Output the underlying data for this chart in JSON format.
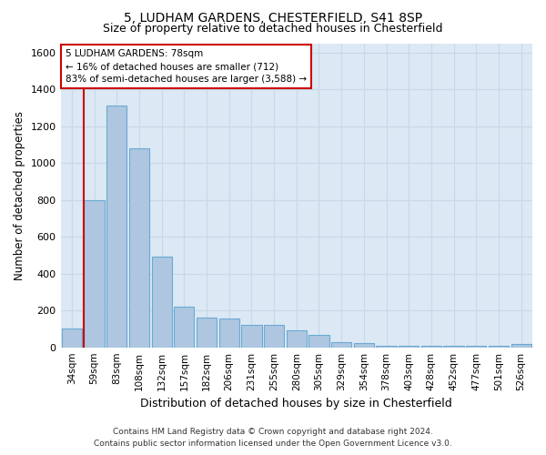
{
  "title1": "5, LUDHAM GARDENS, CHESTERFIELD, S41 8SP",
  "title2": "Size of property relative to detached houses in Chesterfield",
  "xlabel": "Distribution of detached houses by size in Chesterfield",
  "ylabel": "Number of detached properties",
  "footer1": "Contains HM Land Registry data © Crown copyright and database right 2024.",
  "footer2": "Contains public sector information licensed under the Open Government Licence v3.0.",
  "annotation_title": "5 LUDHAM GARDENS: 78sqm",
  "annotation_line1": "← 16% of detached houses are smaller (712)",
  "annotation_line2": "83% of semi-detached houses are larger (3,588) →",
  "bar_categories": [
    "34sqm",
    "59sqm",
    "83sqm",
    "108sqm",
    "132sqm",
    "157sqm",
    "182sqm",
    "206sqm",
    "231sqm",
    "255sqm",
    "280sqm",
    "305sqm",
    "329sqm",
    "354sqm",
    "378sqm",
    "403sqm",
    "428sqm",
    "452sqm",
    "477sqm",
    "501sqm",
    "526sqm"
  ],
  "bar_values": [
    100,
    800,
    1310,
    1080,
    490,
    220,
    160,
    155,
    120,
    120,
    90,
    70,
    30,
    25,
    8,
    8,
    8,
    8,
    8,
    8,
    20
  ],
  "bar_color": "#aec6e0",
  "bar_edge_color": "#6aaad4",
  "vline_color": "#cc0000",
  "vline_x_idx": 1,
  "ylim": [
    0,
    1650
  ],
  "yticks": [
    0,
    200,
    400,
    600,
    800,
    1000,
    1200,
    1400,
    1600
  ],
  "annotation_box_facecolor": "#ffffff",
  "annotation_box_edgecolor": "#cc0000",
  "grid_color": "#c8d8e8",
  "plot_bg_color": "#dce8f3",
  "fig_bg_color": "#ffffff"
}
